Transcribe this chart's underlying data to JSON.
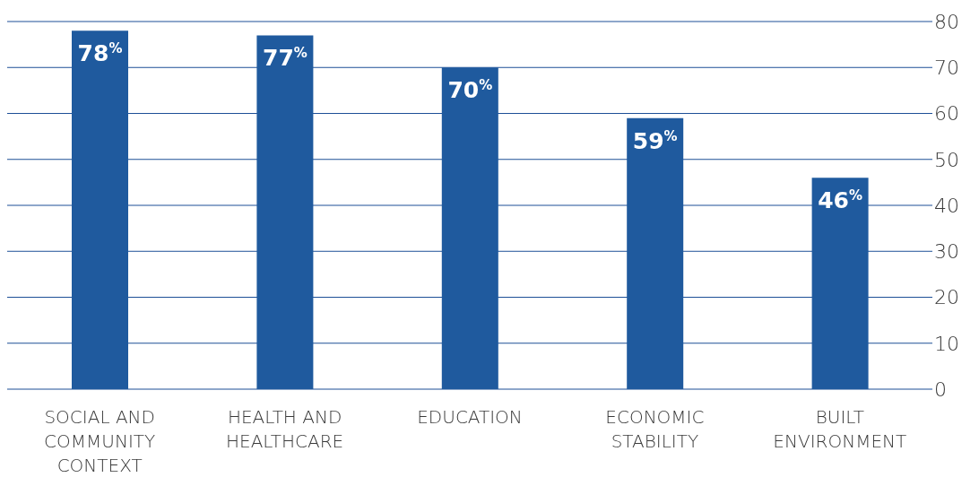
{
  "chart_data": {
    "type": "bar",
    "categories": [
      "SOCIAL AND COMMUNITY CONTEXT",
      "HEALTH AND HEALTHCARE",
      "EDUCATION",
      "ECONOMIC STABILITY",
      "BUILT ENVIRONMENT"
    ],
    "values": [
      78,
      77,
      70,
      59,
      46
    ],
    "value_labels": [
      "78$^{%}$",
      "77$^{%}$",
      "70$^{%}$",
      "59$^{%}$",
      "46$^{%}$"
    ],
    "color": "#1f5a9e",
    "ylim": [
      0,
      80
    ],
    "yticks": [
      0,
      10,
      20,
      30,
      40,
      50,
      60,
      70,
      80
    ],
    "grid": "y"
  }
}
